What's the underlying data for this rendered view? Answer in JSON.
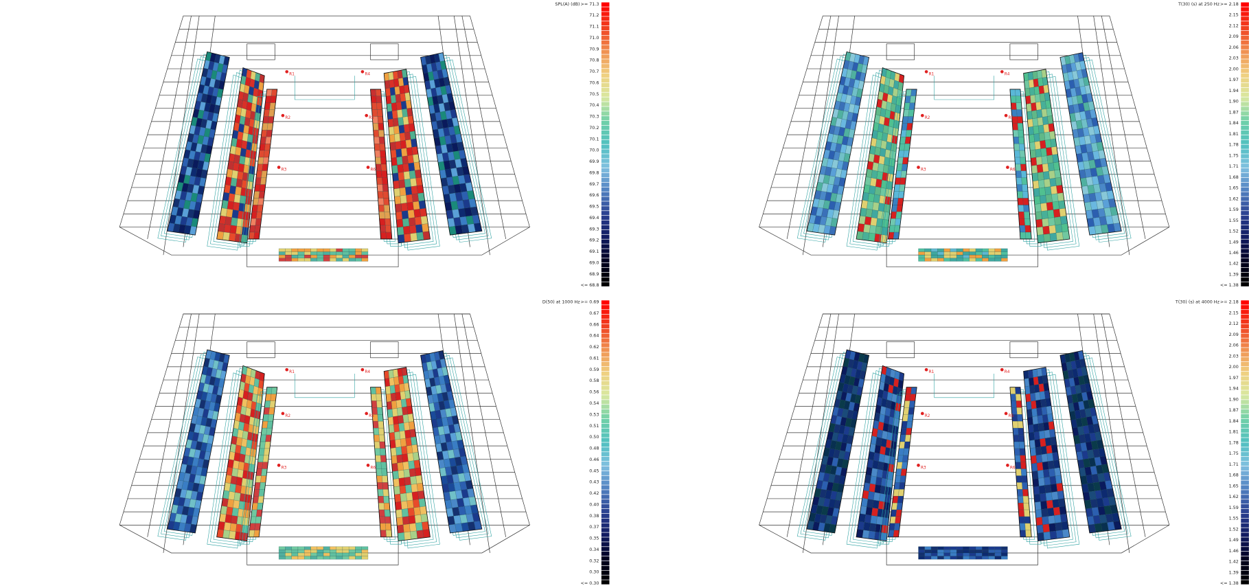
{
  "panels": [
    {
      "title": "SPL(A) (dB)",
      "scale_labels": [
        ">= 71.3",
        "71.2",
        "71.1",
        "71.0",
        "70.9",
        "70.8",
        "70.7",
        "70.6",
        "70.5",
        "70.4",
        "70.3",
        "70.2",
        "70.1",
        "70.0",
        "69.9",
        "69.8",
        "69.7",
        "69.6",
        "69.5",
        "69.4",
        "69.3",
        "69.2",
        "69.1",
        "69.0",
        "68.9",
        "<= 68.8"
      ],
      "receivers": [
        "R1",
        "R2",
        "R3",
        "R4",
        "R5",
        "R6"
      ]
    },
    {
      "title": "T(30) (s)  at 250 Hz",
      "scale_labels": [
        ">= 2.18",
        "2.15",
        "2.12",
        "2.09",
        "2.06",
        "2.03",
        "2.00",
        "1.97",
        "1.94",
        "1.90",
        "1.87",
        "1.84",
        "1.81",
        "1.78",
        "1.75",
        "1.71",
        "1.68",
        "1.65",
        "1.62",
        "1.59",
        "1.55",
        "1.52",
        "1.49",
        "1.46",
        "1.42",
        "1.39",
        "<= 1.38"
      ],
      "receivers": [
        "R1",
        "R2",
        "R3",
        "R4",
        "R5",
        "R6"
      ]
    },
    {
      "title": "D(50)  at 1000 Hz",
      "scale_labels": [
        ">= 0.69",
        "0.67",
        "0.66",
        "0.64",
        "0.62",
        "0.61",
        "0.59",
        "0.58",
        "0.56",
        "0.54",
        "0.53",
        "0.51",
        "0.50",
        "0.48",
        "0.46",
        "0.45",
        "0.43",
        "0.42",
        "0.40",
        "0.38",
        "0.37",
        "0.35",
        "0.34",
        "0.32",
        "0.30",
        "<= 0.30"
      ],
      "receivers": [
        "R1",
        "R2",
        "R3",
        "R4",
        "R5",
        "R6"
      ]
    },
    {
      "title": "T(30) (s)  at 4000 Hz",
      "scale_labels": [
        ">= 2.18",
        "2.15",
        "2.12",
        "2.09",
        "2.06",
        "2.03",
        "2.00",
        "1.97",
        "1.94",
        "1.90",
        "1.87",
        "1.84",
        "1.81",
        "1.78",
        "1.75",
        "1.71",
        "1.68",
        "1.65",
        "1.62",
        "1.59",
        "1.55",
        "1.52",
        "1.49",
        "1.46",
        "1.42",
        "1.39",
        "<= 1.38"
      ],
      "receivers": [
        "R1",
        "R2",
        "R3",
        "R4",
        "R5",
        "R6"
      ]
    }
  ]
}
